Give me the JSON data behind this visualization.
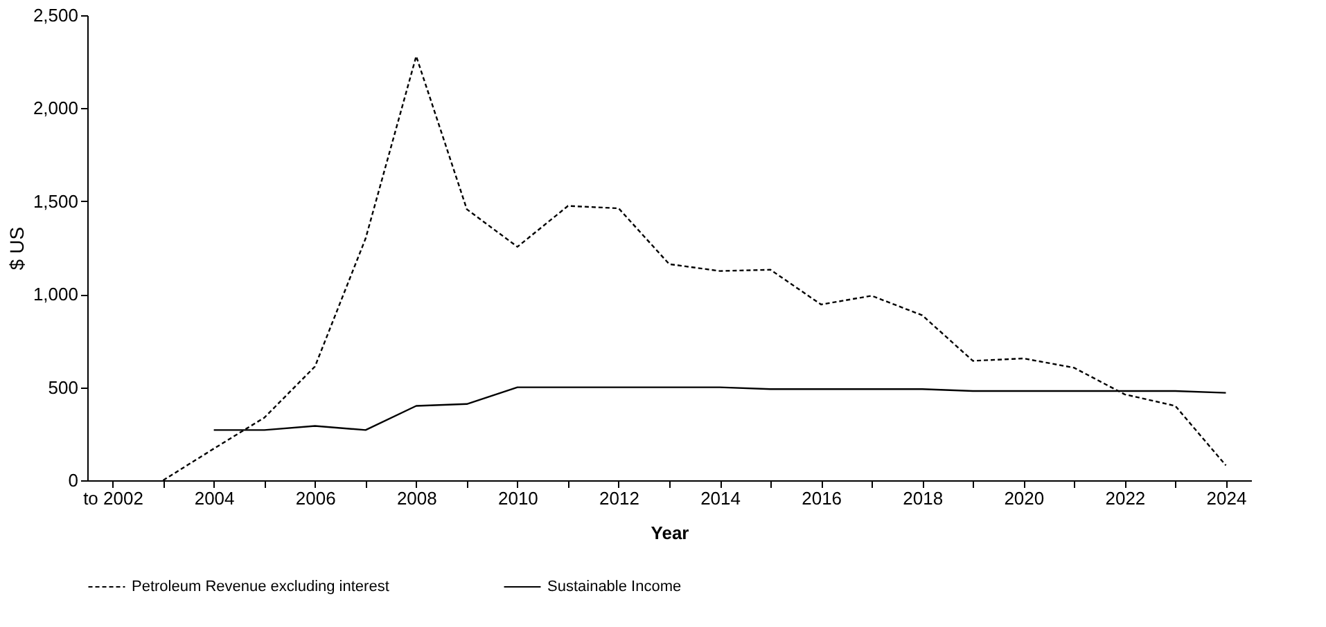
{
  "chart_data": {
    "type": "line",
    "xlabel": "Year",
    "ylabel": "$ US",
    "categories": [
      "to 2002",
      null,
      "2004",
      null,
      "2006",
      null,
      "2008",
      null,
      "2010",
      null,
      "2012",
      null,
      "2014",
      null,
      "2016",
      null,
      "2018",
      null,
      "2020",
      null,
      "2022",
      null,
      "2024"
    ],
    "series": [
      {
        "name": "Petroleum Revenue excluding interest",
        "color": "#000000",
        "line_style": "dashed",
        "values": [
          null,
          0,
          170,
          337,
          612,
          1300,
          2280,
          1457,
          1255,
          1475,
          1462,
          1162,
          1125,
          1132,
          945,
          992,
          887,
          642,
          655,
          605,
          462,
          400,
          80
        ]
      },
      {
        "name": "Sustainable Income",
        "color": "#000000",
        "line_style": "solid",
        "values": [
          null,
          null,
          270,
          270,
          292,
          270,
          400,
          410,
          500,
          500,
          500,
          500,
          500,
          490,
          490,
          490,
          490,
          480,
          480,
          480,
          480,
          480,
          470
        ]
      }
    ],
    "ylim": [
      0,
      2500
    ],
    "yticks": [
      0,
      500,
      {
        "value": 1000,
        "label": "1,000"
      },
      {
        "value": 1500,
        "label": "1,500"
      },
      {
        "value": 2000,
        "label": "2,000"
      },
      {
        "value": 2500,
        "label": "2,500"
      }
    ],
    "grid": false,
    "legend": "bottom"
  }
}
